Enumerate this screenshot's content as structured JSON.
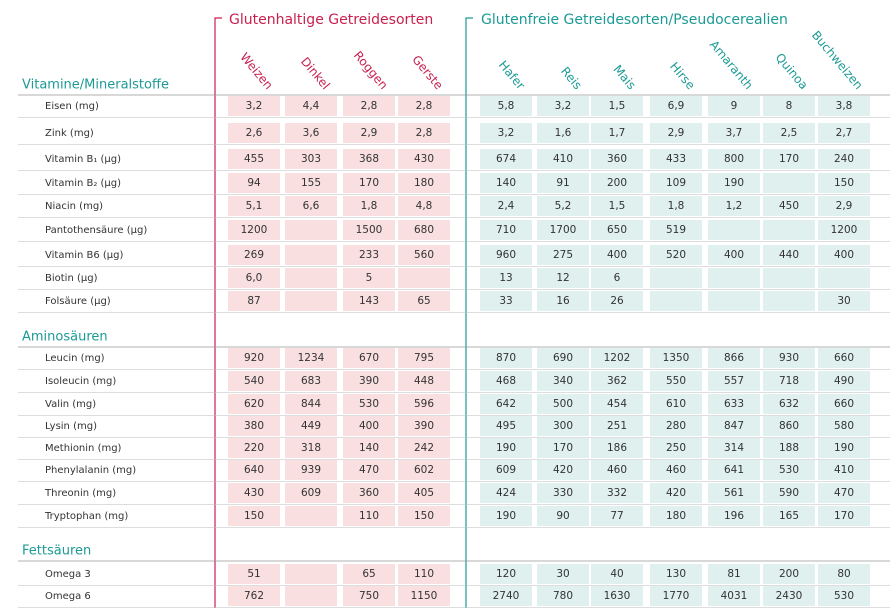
{
  "header": {
    "group_gluten": "Glutenhaltige Getreidesorten",
    "group_free": "Glutenfreie Getreidesorten/Pseudocerealien",
    "columns": [
      "Weizen",
      "Dinkel",
      "Roggen",
      "Gerste",
      "Hafer",
      "Reis",
      "Mais",
      "Hirse",
      "Amaranth",
      "Quinoa",
      "Buchweizen"
    ]
  },
  "sections": [
    {
      "title": "Vitamine/Mineralstoffe",
      "rows": [
        {
          "label": "Eisen (mg)",
          "values": [
            "3,2",
            "4,4",
            "2,8",
            "2,8",
            "5,8",
            "3,2",
            "1,5",
            "6,9",
            "9",
            "8",
            "3,8"
          ]
        },
        {
          "label": "Zink (mg)",
          "values": [
            "2,6",
            "3,6",
            "2,9",
            "2,8",
            "3,2",
            "1,6",
            "1,7",
            "2,9",
            "3,7",
            "2,5",
            "2,7"
          ]
        },
        {
          "label": "Vitamin B₁ (µg)",
          "values": [
            "455",
            "303",
            "368",
            "430",
            "674",
            "410",
            "360",
            "433",
            "800",
            "170",
            "240"
          ]
        },
        {
          "label": "Vitamin B₂ (µg)",
          "values": [
            "94",
            "155",
            "170",
            "180",
            "140",
            "91",
            "200",
            "109",
            "190",
            null,
            "150"
          ]
        },
        {
          "label": "Niacin (mg)",
          "values": [
            "5,1",
            "6,6",
            "1,8",
            "4,8",
            "2,4",
            "5,2",
            "1,5",
            "1,8",
            "1,2",
            "450",
            "2,9"
          ]
        },
        {
          "label": "Pantothensäure (µg)",
          "values": [
            "1200",
            null,
            "1500",
            "680",
            "710",
            "1700",
            "650",
            "519",
            null,
            null,
            "1200"
          ]
        },
        {
          "label": "Vitamin B6 (µg)",
          "values": [
            "269",
            null,
            "233",
            "560",
            "960",
            "275",
            "400",
            "520",
            "400",
            "440",
            "400"
          ]
        },
        {
          "label": "Biotin (µg)",
          "values": [
            "6,0",
            null,
            "5",
            null,
            "13",
            "12",
            "6",
            null,
            null,
            null,
            null
          ]
        },
        {
          "label": "Folsäure (µg)",
          "values": [
            "87",
            null,
            "143",
            "65",
            "33",
            "16",
            "26",
            null,
            null,
            null,
            "30"
          ]
        }
      ]
    },
    {
      "title": "Aminosäuren",
      "rows": [
        {
          "label": "Leucin (mg)",
          "values": [
            "920",
            "1234",
            "670",
            "795",
            "870",
            "690",
            "1202",
            "1350",
            "866",
            "930",
            "660"
          ]
        },
        {
          "label": "Isoleucin (mg)",
          "values": [
            "540",
            "683",
            "390",
            "448",
            "468",
            "340",
            "362",
            "550",
            "557",
            "718",
            "490"
          ]
        },
        {
          "label": "Valin (mg)",
          "values": [
            "620",
            "844",
            "530",
            "596",
            "642",
            "500",
            "454",
            "610",
            "633",
            "632",
            "660"
          ]
        },
        {
          "label": "Lysin (mg)",
          "values": [
            "380",
            "449",
            "400",
            "390",
            "495",
            "300",
            "251",
            "280",
            "847",
            "860",
            "580"
          ]
        },
        {
          "label": "Methionin (mg)",
          "values": [
            "220",
            "318",
            "140",
            "242",
            "190",
            "170",
            "186",
            "250",
            "314",
            "188",
            "190"
          ]
        },
        {
          "label": "Phenylalanin (mg)",
          "values": [
            "640",
            "939",
            "470",
            "602",
            "609",
            "420",
            "460",
            "460",
            "641",
            "530",
            "410"
          ]
        },
        {
          "label": "Threonin (mg)",
          "values": [
            "430",
            "609",
            "360",
            "405",
            "424",
            "330",
            "332",
            "420",
            "561",
            "590",
            "470"
          ]
        },
        {
          "label": "Tryptophan (mg)",
          "values": [
            "150",
            null,
            "110",
            "150",
            "190",
            "90",
            "77",
            "180",
            "196",
            "165",
            "170"
          ]
        }
      ]
    },
    {
      "title": "Fettsäuren",
      "rows": [
        {
          "label": "Omega 3",
          "values": [
            "51",
            null,
            "65",
            "110",
            "120",
            "30",
            "40",
            "130",
            "81",
            "200",
            "80"
          ]
        },
        {
          "label": "Omega 6",
          "values": [
            "762",
            null,
            "750",
            "1150",
            "2740",
            "780",
            "1630",
            "1770",
            "4031",
            "2430",
            "530"
          ]
        }
      ]
    }
  ]
}
